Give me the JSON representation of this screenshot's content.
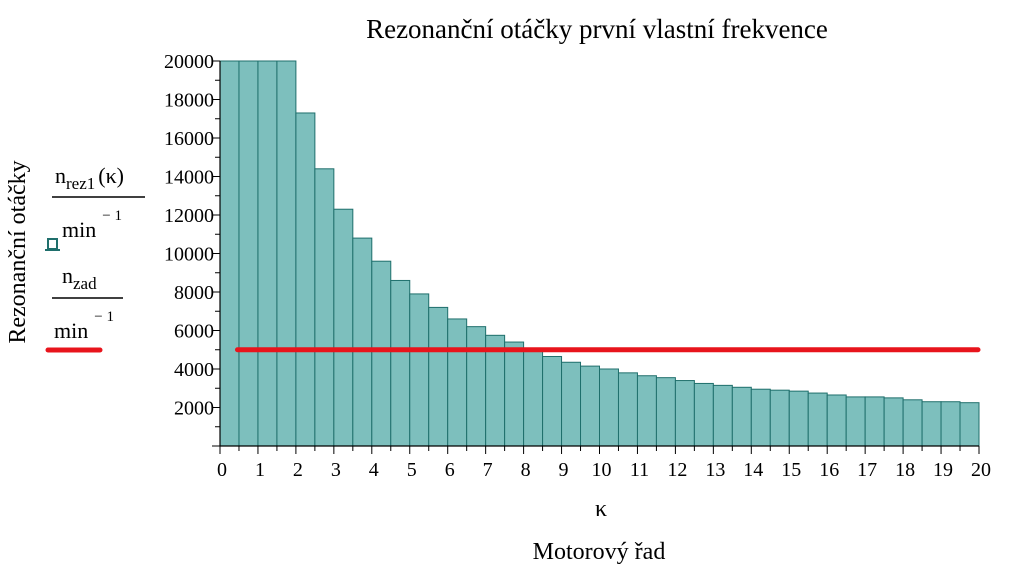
{
  "chart_data": {
    "type": "bar",
    "title": "Rezonanční otáčky první vlastní frekvence",
    "xlabel": "Motorový řad",
    "xlabel_symbol": "κ",
    "ylabel": "Rezonanční otáčky",
    "xlim": [
      0,
      20
    ],
    "ylim": [
      0,
      20000
    ],
    "x_ticks": [
      "0",
      "1",
      "2",
      "3",
      "4",
      "5",
      "6",
      "7",
      "8",
      "9",
      "10",
      "11",
      "12",
      "13",
      "14",
      "15",
      "16",
      "17",
      "18",
      "19",
      "20"
    ],
    "y_ticks": [
      "2000",
      "4000",
      "6000",
      "8000",
      "10000",
      "12000",
      "14000",
      "16000",
      "18000",
      "20000"
    ],
    "bar_width": 0.5,
    "bar_color": "#7dbfbd",
    "bar_edge_color": "#1f6f6c",
    "x": [
      0.25,
      0.75,
      1.25,
      1.75,
      2.25,
      2.75,
      3.25,
      3.75,
      4.25,
      4.75,
      5.25,
      5.75,
      6.25,
      6.75,
      7.25,
      7.75,
      8.25,
      8.75,
      9.25,
      9.75,
      10.25,
      10.75,
      11.25,
      11.75,
      12.25,
      12.75,
      13.25,
      13.75,
      14.25,
      14.75,
      15.25,
      15.75,
      16.25,
      16.75,
      17.25,
      17.75,
      18.25,
      18.75,
      19.25,
      19.75
    ],
    "values": [
      20000,
      20000,
      20000,
      20000,
      17300,
      14400,
      12300,
      10800,
      9600,
      8600,
      7900,
      7200,
      6600,
      6200,
      5750,
      5400,
      5050,
      4650,
      4350,
      4150,
      4000,
      3800,
      3650,
      3550,
      3400,
      3250,
      3150,
      3050,
      2950,
      2900,
      2850,
      2750,
      2650,
      2550,
      2550,
      2500,
      2400,
      2300,
      2300,
      2250
    ],
    "series": [
      {
        "legend_text": "n",
        "legend_subscript": "rez1",
        "legend_argument": "(κ)",
        "legend_denominator": "min",
        "legend_exponent": "− 1",
        "marker": "bar",
        "color": "#1f6f6c"
      },
      {
        "legend_text": "n",
        "legend_subscript": "zad",
        "legend_denominator": "min",
        "legend_exponent": "− 1",
        "marker": "line",
        "color": "#e8141c",
        "constant_value": 5000,
        "x_range": [
          0.25,
          20
        ]
      }
    ]
  }
}
